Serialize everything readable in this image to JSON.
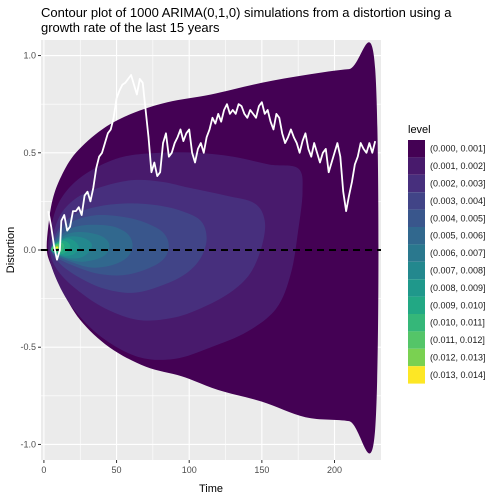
{
  "chart_data": {
    "type": "contour",
    "title": "Contour plot of 1000 ARIMA(0,1,0) simulations from a distortion using a growth rate of the last 15 years",
    "title_lines": [
      "Contour plot of 1000 ARIMA(0,1,0) simulations from a distortion using a",
      "growth rate of the last 15 years"
    ],
    "xlabel": "Time",
    "ylabel": "Distortion",
    "xlim": [
      -2,
      232
    ],
    "ylim": [
      -1.08,
      1.08
    ],
    "x_ticks": [
      0,
      50,
      100,
      150,
      200
    ],
    "x_tick_labels": [
      "0",
      "50",
      "100",
      "150",
      "200"
    ],
    "y_ticks": [
      -1.0,
      -0.5,
      0.0,
      0.5,
      1.0
    ],
    "y_tick_labels": [
      "-1.0",
      "-0.5",
      "0.0",
      "0.5",
      "1.0"
    ],
    "reference_line": {
      "y": 0,
      "style": "dashed",
      "color": "#000000"
    },
    "legend": {
      "title": "level",
      "position": "right",
      "entries": [
        {
          "label": "(0.000, 0.001]",
          "color": "#440154"
        },
        {
          "label": "(0.001, 0.002]",
          "color": "#481a6c"
        },
        {
          "label": "(0.002, 0.003]",
          "color": "#472f7d"
        },
        {
          "label": "(0.003, 0.004]",
          "color": "#414487"
        },
        {
          "label": "(0.004, 0.005]",
          "color": "#39568c"
        },
        {
          "label": "(0.005, 0.006]",
          "color": "#31688e"
        },
        {
          "label": "(0.006, 0.007]",
          "color": "#2a788e"
        },
        {
          "label": "(0.007, 0.008]",
          "color": "#23888e"
        },
        {
          "label": "(0.008, 0.009]",
          "color": "#1f988b"
        },
        {
          "label": "(0.009, 0.010]",
          "color": "#22a884"
        },
        {
          "label": "(0.010, 0.011]",
          "color": "#35b779"
        },
        {
          "label": "(0.011, 0.012]",
          "color": "#54c568"
        },
        {
          "label": "(0.012, 0.013]",
          "color": "#7ad151"
        },
        {
          "label": "(0.013, 0.014]",
          "color": "#fde725"
        }
      ]
    },
    "contour_regions": [
      {
        "level_index": 0,
        "path": [
          [
            2,
            0
          ],
          [
            3,
            0.12
          ],
          [
            6,
            0.26
          ],
          [
            12,
            0.38
          ],
          [
            22,
            0.5
          ],
          [
            40,
            0.62
          ],
          [
            60,
            0.7
          ],
          [
            85,
            0.76
          ],
          [
            115,
            0.8
          ],
          [
            150,
            0.86
          ],
          [
            180,
            0.9
          ],
          [
            210,
            0.93
          ],
          [
            228,
            0.93
          ],
          [
            228,
            -0.92
          ],
          [
            210,
            -0.88
          ],
          [
            180,
            -0.86
          ],
          [
            150,
            -0.78
          ],
          [
            120,
            -0.72
          ],
          [
            95,
            -0.65
          ],
          [
            70,
            -0.6
          ],
          [
            45,
            -0.5
          ],
          [
            25,
            -0.36
          ],
          [
            12,
            -0.2
          ],
          [
            5,
            -0.08
          ],
          [
            2,
            0
          ]
        ]
      },
      {
        "level_index": 1,
        "path": [
          [
            3,
            0
          ],
          [
            5,
            0.12
          ],
          [
            10,
            0.24
          ],
          [
            20,
            0.34
          ],
          [
            35,
            0.42
          ],
          [
            55,
            0.48
          ],
          [
            80,
            0.5
          ],
          [
            105,
            0.5
          ],
          [
            130,
            0.48
          ],
          [
            155,
            0.44
          ],
          [
            175,
            0.42
          ],
          [
            178,
            0.3
          ],
          [
            175,
            0.1
          ],
          [
            170,
            -0.12
          ],
          [
            160,
            -0.3
          ],
          [
            140,
            -0.42
          ],
          [
            115,
            -0.5
          ],
          [
            90,
            -0.56
          ],
          [
            65,
            -0.55
          ],
          [
            40,
            -0.45
          ],
          [
            20,
            -0.3
          ],
          [
            8,
            -0.14
          ],
          [
            3,
            0
          ]
        ]
      },
      {
        "level_index": 2,
        "path": [
          [
            4,
            0
          ],
          [
            7,
            0.1
          ],
          [
            13,
            0.2
          ],
          [
            25,
            0.28
          ],
          [
            42,
            0.33
          ],
          [
            62,
            0.36
          ],
          [
            82,
            0.35
          ],
          [
            100,
            0.32
          ],
          [
            125,
            0.28
          ],
          [
            145,
            0.24
          ],
          [
            152,
            0.15
          ],
          [
            150,
            0.02
          ],
          [
            142,
            -0.12
          ],
          [
            128,
            -0.22
          ],
          [
            108,
            -0.3
          ],
          [
            88,
            -0.35
          ],
          [
            65,
            -0.36
          ],
          [
            42,
            -0.3
          ],
          [
            22,
            -0.2
          ],
          [
            9,
            -0.1
          ],
          [
            4,
            0
          ]
        ]
      },
      {
        "level_index": 3,
        "path": [
          [
            5,
            0
          ],
          [
            8,
            0.08
          ],
          [
            15,
            0.15
          ],
          [
            26,
            0.2
          ],
          [
            42,
            0.23
          ],
          [
            60,
            0.24
          ],
          [
            78,
            0.23
          ],
          [
            95,
            0.2
          ],
          [
            108,
            0.15
          ],
          [
            112,
            0.06
          ],
          [
            108,
            -0.04
          ],
          [
            98,
            -0.12
          ],
          [
            82,
            -0.18
          ],
          [
            62,
            -0.22
          ],
          [
            42,
            -0.2
          ],
          [
            24,
            -0.14
          ],
          [
            11,
            -0.07
          ],
          [
            5,
            0
          ]
        ]
      },
      {
        "level_index": 4,
        "path": [
          [
            5,
            0
          ],
          [
            8,
            0.06
          ],
          [
            14,
            0.12
          ],
          [
            24,
            0.16
          ],
          [
            38,
            0.18
          ],
          [
            55,
            0.17
          ],
          [
            70,
            0.14
          ],
          [
            82,
            0.09
          ],
          [
            86,
            0.02
          ],
          [
            82,
            -0.05
          ],
          [
            70,
            -0.1
          ],
          [
            54,
            -0.13
          ],
          [
            36,
            -0.12
          ],
          [
            20,
            -0.08
          ],
          [
            9,
            -0.04
          ],
          [
            5,
            0
          ]
        ]
      },
      {
        "level_index": 5,
        "path": [
          [
            5,
            0
          ],
          [
            8,
            0.05
          ],
          [
            14,
            0.09
          ],
          [
            22,
            0.12
          ],
          [
            34,
            0.13
          ],
          [
            48,
            0.12
          ],
          [
            58,
            0.08
          ],
          [
            61,
            0.02
          ],
          [
            57,
            -0.04
          ],
          [
            46,
            -0.08
          ],
          [
            32,
            -0.09
          ],
          [
            18,
            -0.06
          ],
          [
            9,
            -0.03
          ],
          [
            5,
            0
          ]
        ]
      },
      {
        "level_index": 6,
        "path": [
          [
            5,
            0
          ],
          [
            8,
            0.04
          ],
          [
            13,
            0.07
          ],
          [
            20,
            0.09
          ],
          [
            30,
            0.09
          ],
          [
            40,
            0.07
          ],
          [
            45,
            0.03
          ],
          [
            43,
            -0.02
          ],
          [
            35,
            -0.05
          ],
          [
            24,
            -0.06
          ],
          [
            14,
            -0.04
          ],
          [
            8,
            -0.02
          ],
          [
            5,
            0
          ]
        ]
      },
      {
        "level_index": 7,
        "path": [
          [
            5,
            0
          ],
          [
            8,
            0.03
          ],
          [
            13,
            0.06
          ],
          [
            20,
            0.07
          ],
          [
            28,
            0.06
          ],
          [
            33,
            0.03
          ],
          [
            31,
            -0.01
          ],
          [
            25,
            -0.04
          ],
          [
            16,
            -0.04
          ],
          [
            9,
            -0.02
          ],
          [
            5,
            0
          ]
        ]
      },
      {
        "level_index": 8,
        "path": [
          [
            5,
            0
          ],
          [
            7,
            0.03
          ],
          [
            12,
            0.05
          ],
          [
            17,
            0.06
          ],
          [
            22,
            0.04
          ],
          [
            24,
            0.01
          ],
          [
            21,
            -0.02
          ],
          [
            15,
            -0.03
          ],
          [
            9,
            -0.02
          ],
          [
            5,
            0
          ]
        ]
      },
      {
        "level_index": 9,
        "path": [
          [
            5,
            0
          ],
          [
            7,
            0.025
          ],
          [
            11,
            0.045
          ],
          [
            15,
            0.045
          ],
          [
            18,
            0.025
          ],
          [
            17,
            0
          ],
          [
            13,
            -0.02
          ],
          [
            8,
            -0.015
          ],
          [
            5,
            0
          ]
        ]
      },
      {
        "level_index": 10,
        "path": [
          [
            5,
            0.005
          ],
          [
            7,
            0.025
          ],
          [
            10,
            0.035
          ],
          [
            13,
            0.035
          ],
          [
            14,
            0.015
          ],
          [
            12,
            -0.01
          ],
          [
            8,
            -0.01
          ],
          [
            5,
            0.005
          ]
        ]
      },
      {
        "level_index": 11,
        "path": [
          [
            6,
            0.01
          ],
          [
            8,
            0.025
          ],
          [
            10,
            0.03
          ],
          [
            11.5,
            0.02
          ],
          [
            11,
            0.005
          ],
          [
            8,
            -0.005
          ],
          [
            6,
            0.01
          ]
        ]
      },
      {
        "level_index": 12,
        "path": [
          [
            7,
            0.012
          ],
          [
            8.5,
            0.022
          ],
          [
            10,
            0.02
          ],
          [
            10.3,
            0.01
          ],
          [
            8.5,
            0.002
          ],
          [
            7,
            0.012
          ]
        ]
      },
      {
        "level_index": 13,
        "path": [
          [
            8,
            0.012
          ],
          [
            9,
            0.018
          ],
          [
            9.8,
            0.014
          ],
          [
            9,
            0.007
          ],
          [
            8,
            0.012
          ]
        ]
      }
    ],
    "observed_series": {
      "name": "observed distortion",
      "color": "#ffffff",
      "x": [
        3,
        5,
        7,
        9,
        11,
        12,
        14,
        16,
        18,
        20,
        22,
        24,
        26,
        28,
        30,
        32,
        34,
        36,
        38,
        40,
        42,
        44,
        46,
        48,
        50,
        52,
        54,
        56,
        58,
        60,
        62,
        64,
        66,
        68,
        70,
        72,
        74,
        76,
        78,
        80,
        82,
        84,
        86,
        88,
        90,
        92,
        94,
        96,
        98,
        100,
        102,
        104,
        106,
        108,
        110,
        112,
        114,
        116,
        118,
        120,
        122,
        124,
        126,
        128,
        130,
        132,
        134,
        136,
        138,
        140,
        142,
        144,
        146,
        148,
        150,
        152,
        154,
        156,
        158,
        160,
        162,
        164,
        166,
        168,
        170,
        172,
        174,
        176,
        178,
        180,
        182,
        184,
        186,
        188,
        190,
        192,
        194,
        196,
        198,
        200,
        202,
        204,
        206,
        208,
        210,
        212,
        214,
        216,
        218,
        220,
        222,
        224,
        226,
        228
      ],
      "y": [
        0.2,
        0.12,
        0.02,
        -0.05,
        0.0,
        0.15,
        0.18,
        0.1,
        0.12,
        0.2,
        0.2,
        0.22,
        0.18,
        0.28,
        0.3,
        0.25,
        0.32,
        0.42,
        0.48,
        0.5,
        0.55,
        0.6,
        0.62,
        0.68,
        0.78,
        0.82,
        0.85,
        0.86,
        0.88,
        0.9,
        0.85,
        0.8,
        0.88,
        0.86,
        0.72,
        0.58,
        0.4,
        0.45,
        0.38,
        0.4,
        0.55,
        0.6,
        0.48,
        0.5,
        0.55,
        0.58,
        0.62,
        0.56,
        0.6,
        0.62,
        0.5,
        0.45,
        0.52,
        0.55,
        0.5,
        0.58,
        0.62,
        0.68,
        0.65,
        0.7,
        0.66,
        0.72,
        0.75,
        0.7,
        0.72,
        0.7,
        0.75,
        0.74,
        0.7,
        0.68,
        0.72,
        0.7,
        0.68,
        0.74,
        0.76,
        0.7,
        0.72,
        0.66,
        0.62,
        0.7,
        0.68,
        0.6,
        0.55,
        0.58,
        0.62,
        0.58,
        0.55,
        0.5,
        0.56,
        0.6,
        0.52,
        0.48,
        0.55,
        0.5,
        0.45,
        0.5,
        0.52,
        0.4,
        0.45,
        0.5,
        0.55,
        0.48,
        0.3,
        0.2,
        0.28,
        0.35,
        0.44,
        0.48,
        0.55,
        0.52,
        0.5,
        0.55,
        0.5,
        0.56
      ]
    }
  }
}
